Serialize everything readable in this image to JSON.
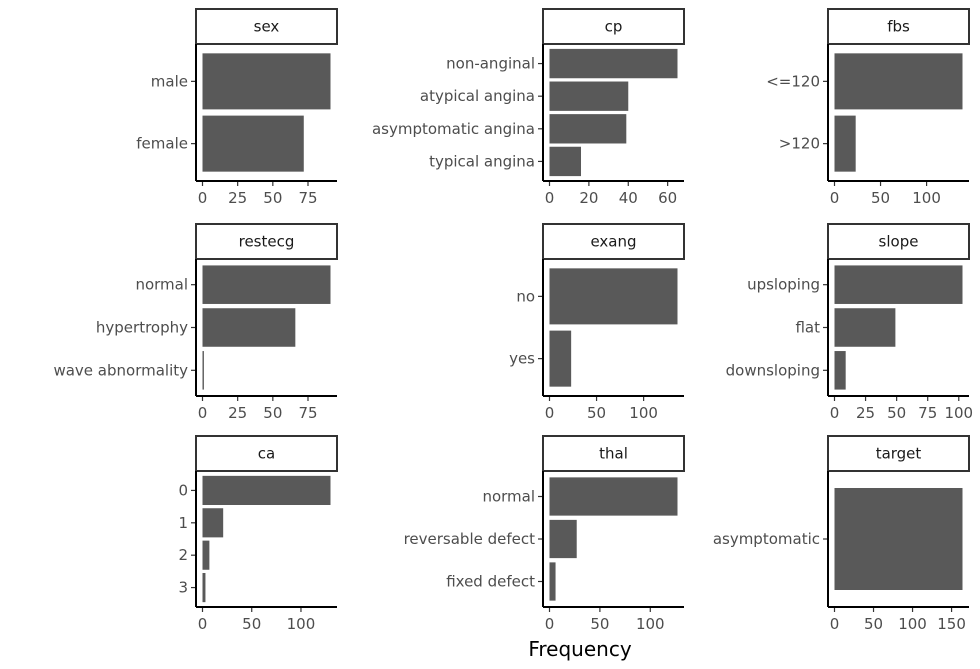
{
  "chart_data": {
    "type": "bar",
    "orientation": "horizontal",
    "layout": "facet_wrap 3x3, free scales",
    "xlabel": "Frequency",
    "ylabel": "",
    "bar_color": "#595959",
    "grid": false,
    "panels": [
      {
        "title": "sex",
        "categories": [
          "male",
          "female"
        ],
        "values": [
          91,
          72
        ],
        "xlim": [
          0,
          91
        ],
        "xticks": [
          0,
          25,
          50,
          75
        ]
      },
      {
        "title": "cp",
        "categories": [
          "non-anginal",
          "atypical angina",
          "asymptomatic angina",
          "typical angina"
        ],
        "values": [
          65,
          40,
          39,
          16
        ],
        "xlim": [
          0,
          65
        ],
        "xticks": [
          0,
          20,
          40,
          60
        ]
      },
      {
        "title": "fbs",
        "categories": [
          "<=120",
          ">120"
        ],
        "values": [
          139,
          23
        ],
        "xlim": [
          0,
          139
        ],
        "xticks": [
          0,
          50,
          100
        ]
      },
      {
        "title": "restecg",
        "categories": [
          "normal",
          "hypertrophy",
          "wave abnormality"
        ],
        "values": [
          91,
          66,
          1
        ],
        "xlim": [
          0,
          91
        ],
        "xticks": [
          0,
          25,
          50,
          75
        ]
      },
      {
        "title": "exang",
        "categories": [
          "no",
          "yes"
        ],
        "values": [
          136,
          23
        ],
        "xlim": [
          0,
          136
        ],
        "xticks": [
          0,
          50,
          100
        ]
      },
      {
        "title": "slope",
        "categories": [
          "upsloping",
          "flat",
          "downsloping"
        ],
        "values": [
          103,
          49,
          9
        ],
        "xlim": [
          0,
          103
        ],
        "xticks": [
          0,
          25,
          50,
          75,
          100
        ]
      },
      {
        "title": "ca",
        "categories": [
          "0",
          "1",
          "2",
          "3"
        ],
        "values": [
          130,
          21,
          7,
          3
        ],
        "xlim": [
          0,
          130
        ],
        "xticks": [
          0,
          50,
          100
        ]
      },
      {
        "title": "thal",
        "categories": [
          "normal",
          "reversable defect",
          "fixed defect"
        ],
        "values": [
          127,
          27,
          6
        ],
        "xlim": [
          0,
          127
        ],
        "xticks": [
          0,
          50,
          100
        ]
      },
      {
        "title": "target",
        "categories": [
          "asymptomatic"
        ],
        "values": [
          164
        ],
        "xlim": [
          0,
          164
        ],
        "xticks": [
          0,
          50,
          100,
          150
        ]
      }
    ]
  }
}
